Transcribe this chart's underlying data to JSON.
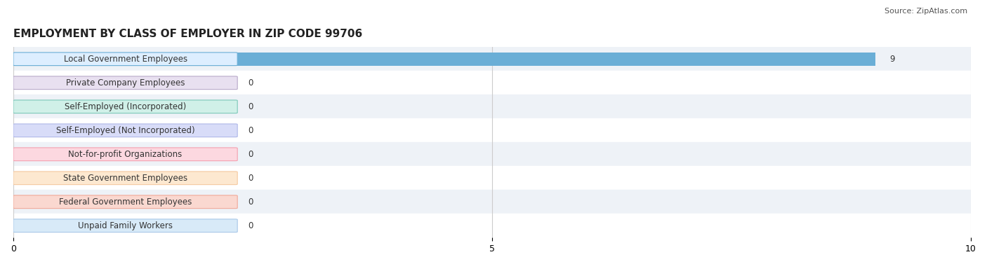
{
  "title": "EMPLOYMENT BY CLASS OF EMPLOYER IN ZIP CODE 99706",
  "source": "Source: ZipAtlas.com",
  "categories": [
    "Local Government Employees",
    "Private Company Employees",
    "Self-Employed (Incorporated)",
    "Self-Employed (Not Incorporated)",
    "Not-for-profit Organizations",
    "State Government Employees",
    "Federal Government Employees",
    "Unpaid Family Workers"
  ],
  "values": [
    9,
    0,
    0,
    0,
    0,
    0,
    0,
    0
  ],
  "bar_colors": [
    "#6aaed6",
    "#b8a9c9",
    "#7bc8b8",
    "#b0b8e8",
    "#f4a0b0",
    "#f5c9a0",
    "#f0a898",
    "#a8c8e8"
  ],
  "label_bg_colors": [
    "#ddeeff",
    "#e8e0f0",
    "#d0f0e8",
    "#d8dcf8",
    "#fcd8e0",
    "#fde8d0",
    "#fad8d0",
    "#d8eaf8"
  ],
  "label_border_colors": [
    "#6aaed6",
    "#b8a9c9",
    "#7bc8b8",
    "#b0b8e8",
    "#f4a0b0",
    "#f5c9a0",
    "#f0a898",
    "#a8c8e8"
  ],
  "row_bg_colors": [
    "#eef2f7",
    "#ffffff"
  ],
  "xlim": [
    0,
    10
  ],
  "xticks": [
    0,
    5,
    10
  ],
  "bar_height": 0.55,
  "title_fontsize": 11,
  "label_fontsize": 8.5,
  "value_fontsize": 8.5,
  "grid_color": "#cccccc",
  "background_color": "#ffffff"
}
